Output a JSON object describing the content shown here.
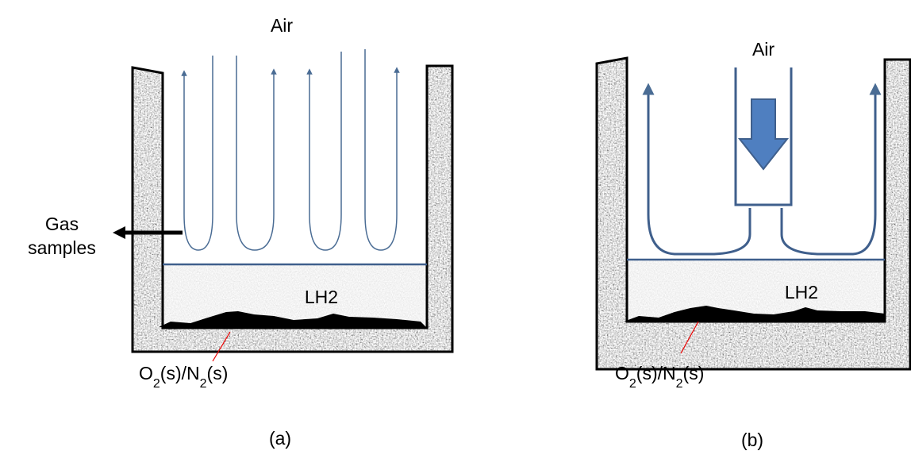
{
  "panels": [
    {
      "air": "Air",
      "gas_samples": [
        "Gas",
        "samples"
      ],
      "liquid": "LH2",
      "deposit": [
        "O",
        "2",
        "(s)/N",
        "2",
        "(s)"
      ],
      "caption": "(a)"
    },
    {
      "air": "Air",
      "liquid": "LH2",
      "deposit": [
        "O",
        "2",
        "(s)/N",
        "2",
        "(s)"
      ],
      "caption": "(b)"
    }
  ]
}
